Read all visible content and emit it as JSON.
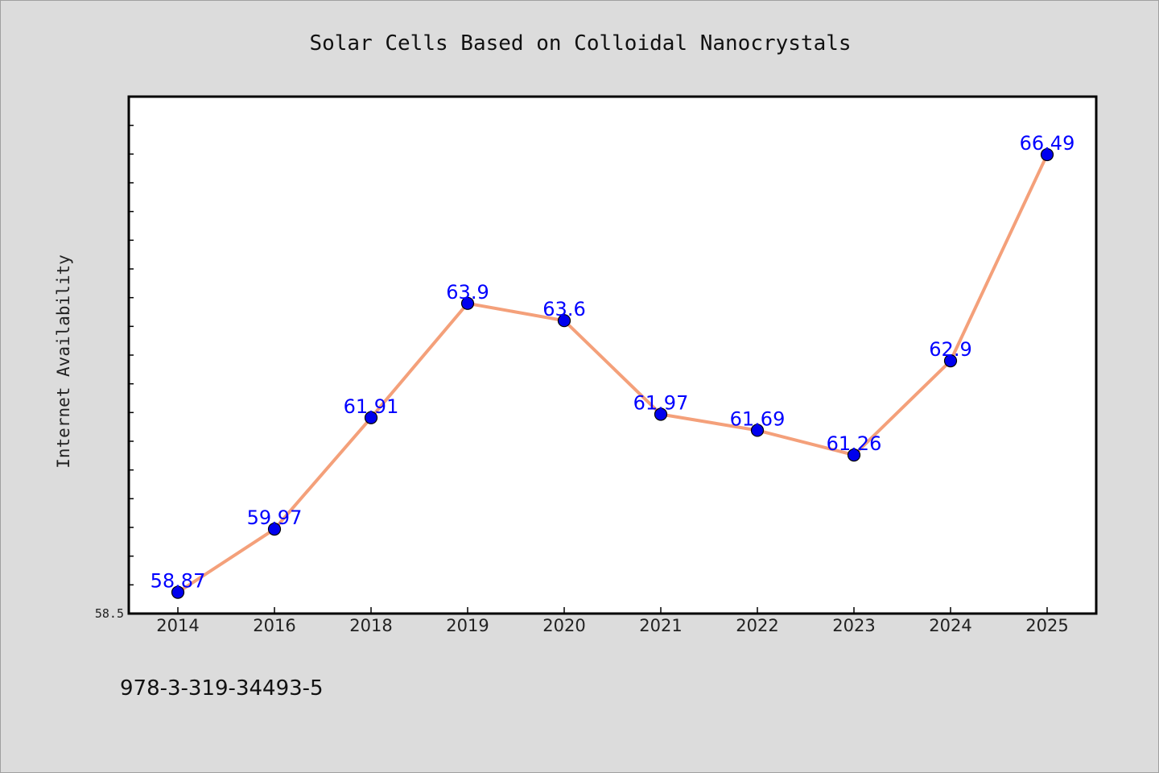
{
  "chart_data": {
    "type": "line",
    "title": "Solar Cells Based on Colloidal Nanocrystals",
    "xlabel": "",
    "ylabel": "Internet Availability",
    "categories": [
      "2014",
      "2016",
      "2018",
      "2019",
      "2020",
      "2021",
      "2022",
      "2023",
      "2024",
      "2025"
    ],
    "series": [
      {
        "values": [
          58.87,
          59.97,
          61.91,
          63.9,
          63.6,
          61.97,
          61.69,
          61.26,
          62.9,
          66.49
        ],
        "line_color": "#f4a07a",
        "marker_color": "#0000ee"
      }
    ],
    "ylim": [
      58.5,
      67.5
    ],
    "yticks_labeled": [
      "58.5"
    ],
    "grid": false,
    "legend": "none",
    "data_label_color": "#0000ff",
    "footer": "978-3-319-34493-5"
  }
}
